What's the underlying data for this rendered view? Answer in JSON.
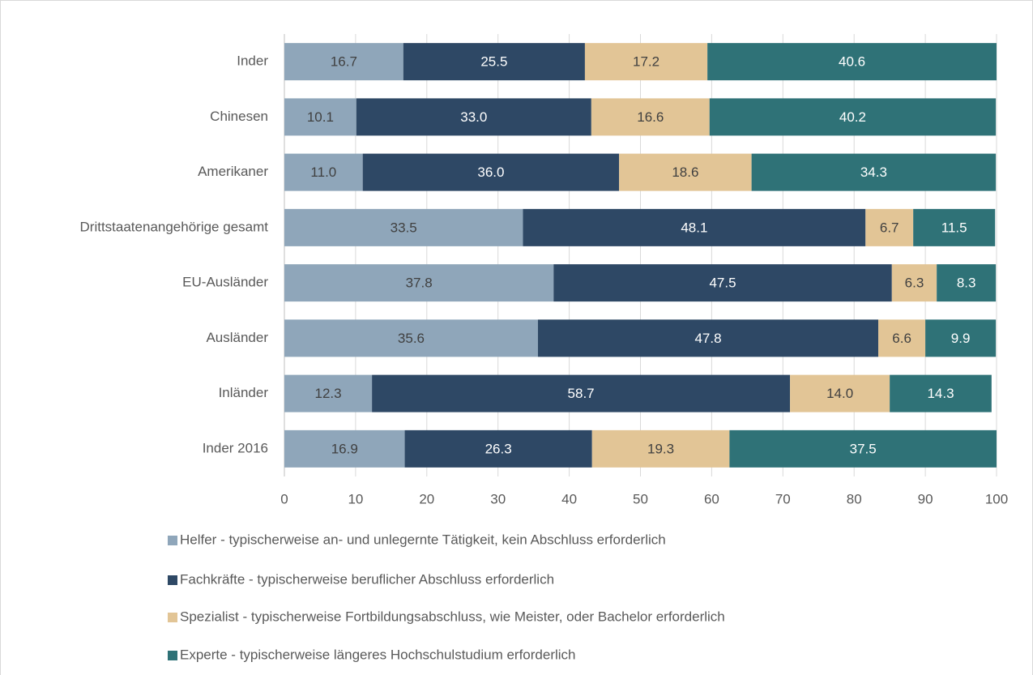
{
  "chart_data": {
    "type": "stacked-barh",
    "categories": [
      "Inder",
      "Chinesen",
      "Amerikaner",
      "Drittstaatenangehörige gesamt",
      "EU-Ausländer",
      "Ausländer",
      "Inländer",
      "Inder 2016"
    ],
    "series": [
      {
        "name": "Helfer - typischerweise an- und unlegernte Tätigkeit, kein Abschluss erforderlich",
        "color": "#8fa6ba",
        "values": [
          16.7,
          10.1,
          11.0,
          33.5,
          37.8,
          35.6,
          12.3,
          16.9
        ],
        "value_labels": [
          "16.7",
          "10.1",
          "11.0",
          "33.5",
          "37.8",
          "35.6",
          "12.3",
          "16.9"
        ]
      },
      {
        "name": "Fachkräfte - typischerweise beruflicher Abschluss erforderlich",
        "color": "#2e4865",
        "values": [
          25.5,
          33.0,
          36.0,
          48.1,
          47.5,
          47.8,
          58.7,
          26.3
        ],
        "value_labels": [
          "25.5",
          "33.0",
          "36.0",
          "48.1",
          "47.5",
          "47.8",
          "58.7",
          "26.3"
        ]
      },
      {
        "name": "Spezialist - typischerweise Fortbildungsabschluss, wie Meister, oder Bachelor erforderlich",
        "color": "#e2c596",
        "values": [
          17.2,
          16.6,
          18.6,
          6.7,
          6.3,
          6.6,
          14.0,
          19.3
        ],
        "value_labels": [
          "17.2",
          "16.6",
          "18.6",
          "6.7",
          "6.3",
          "6.6",
          "14.0",
          "19.3"
        ]
      },
      {
        "name": "Experte - typischerweise längeres Hochschulstudium erforderlich",
        "color": "#2f7277",
        "values": [
          40.6,
          40.2,
          34.3,
          11.5,
          8.3,
          9.9,
          14.3,
          37.5
        ],
        "value_labels": [
          "40.6",
          "40.2",
          "34.3",
          "11.5",
          "8.3",
          "9.9",
          "14.3",
          "37.5"
        ]
      }
    ],
    "xlim": [
      0,
      100
    ],
    "xticks": [
      0,
      10,
      20,
      30,
      40,
      50,
      60,
      70,
      80,
      90,
      100
    ],
    "grid": true,
    "legend": "bottom"
  }
}
